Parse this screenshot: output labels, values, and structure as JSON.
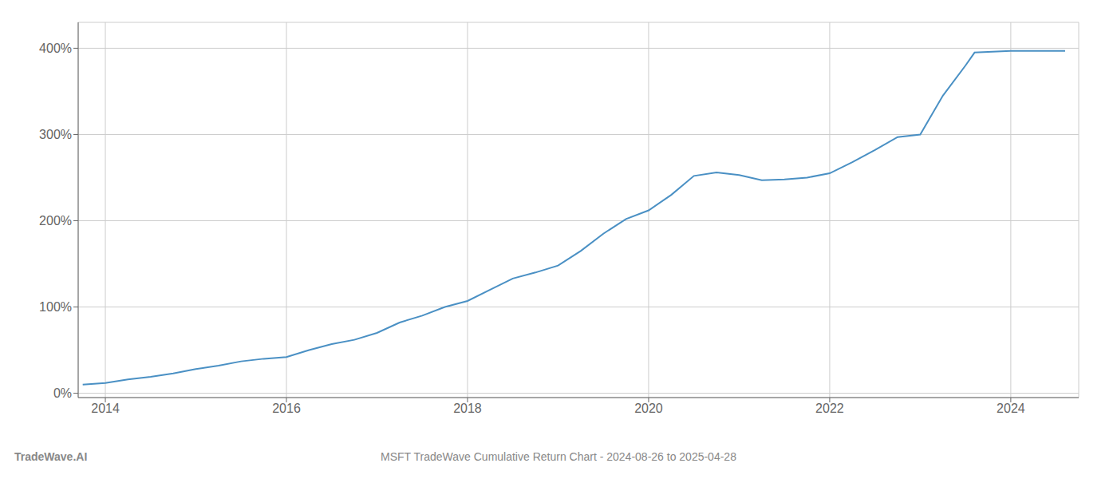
{
  "chart_data": {
    "type": "line",
    "title": "MSFT TradeWave Cumulative Return Chart - 2024-08-26 to 2025-04-28",
    "annotations": [
      "TradeWave.AI"
    ],
    "color": "#4a90c4",
    "grid": true,
    "x": [
      2013.75,
      2014.0,
      2014.25,
      2014.5,
      2014.75,
      2015.0,
      2015.25,
      2015.5,
      2015.75,
      2016.0,
      2016.25,
      2016.5,
      2016.75,
      2017.0,
      2017.25,
      2017.5,
      2017.75,
      2018.0,
      2018.25,
      2018.5,
      2018.75,
      2019.0,
      2019.25,
      2019.5,
      2019.75,
      2020.0,
      2020.25,
      2020.5,
      2020.75,
      2021.0,
      2021.25,
      2021.5,
      2021.75,
      2022.0,
      2022.25,
      2022.5,
      2022.75,
      2023.0,
      2023.1,
      2023.25,
      2023.5,
      2023.6,
      2024.0,
      2024.3,
      2024.6
    ],
    "values": [
      10,
      12,
      16,
      19,
      23,
      28,
      32,
      37,
      40,
      42,
      50,
      57,
      62,
      70,
      82,
      90,
      100,
      107,
      120,
      133,
      140,
      148,
      165,
      185,
      202,
      212,
      230,
      252,
      256,
      253,
      247,
      248,
      250,
      255,
      268,
      282,
      297,
      300,
      318,
      345,
      380,
      395,
      397,
      397,
      397
    ],
    "xlim": [
      2013.7,
      2024.75
    ],
    "ylim": [
      -5,
      430
    ],
    "xticks": [
      2014,
      2016,
      2018,
      2020,
      2022,
      2024
    ],
    "yticks": [
      {
        "value": 0,
        "label": "0%"
      },
      {
        "value": 100,
        "label": "100%"
      },
      {
        "value": 200,
        "label": "200%"
      },
      {
        "value": 300,
        "label": "300%"
      },
      {
        "value": 400,
        "label": "400%"
      }
    ]
  }
}
